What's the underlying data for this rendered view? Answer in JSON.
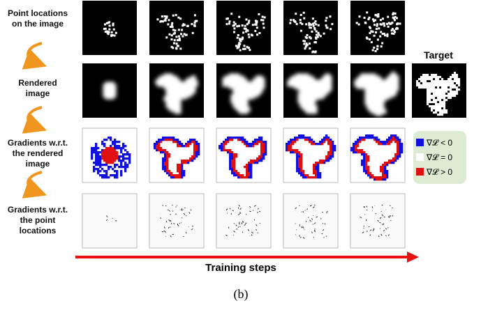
{
  "row_labels": [
    "Point locations on the image",
    "Rendered image",
    "Gradients w.r.t. the rendered image",
    "Gradients w.r.t. the point locations"
  ],
  "target_label": "Target",
  "legend": [
    "∇𝓛 < 0",
    "∇𝓛 = 0",
    "∇𝓛 > 0"
  ],
  "x_axis_label": "Training steps",
  "caption": "(b)"
}
